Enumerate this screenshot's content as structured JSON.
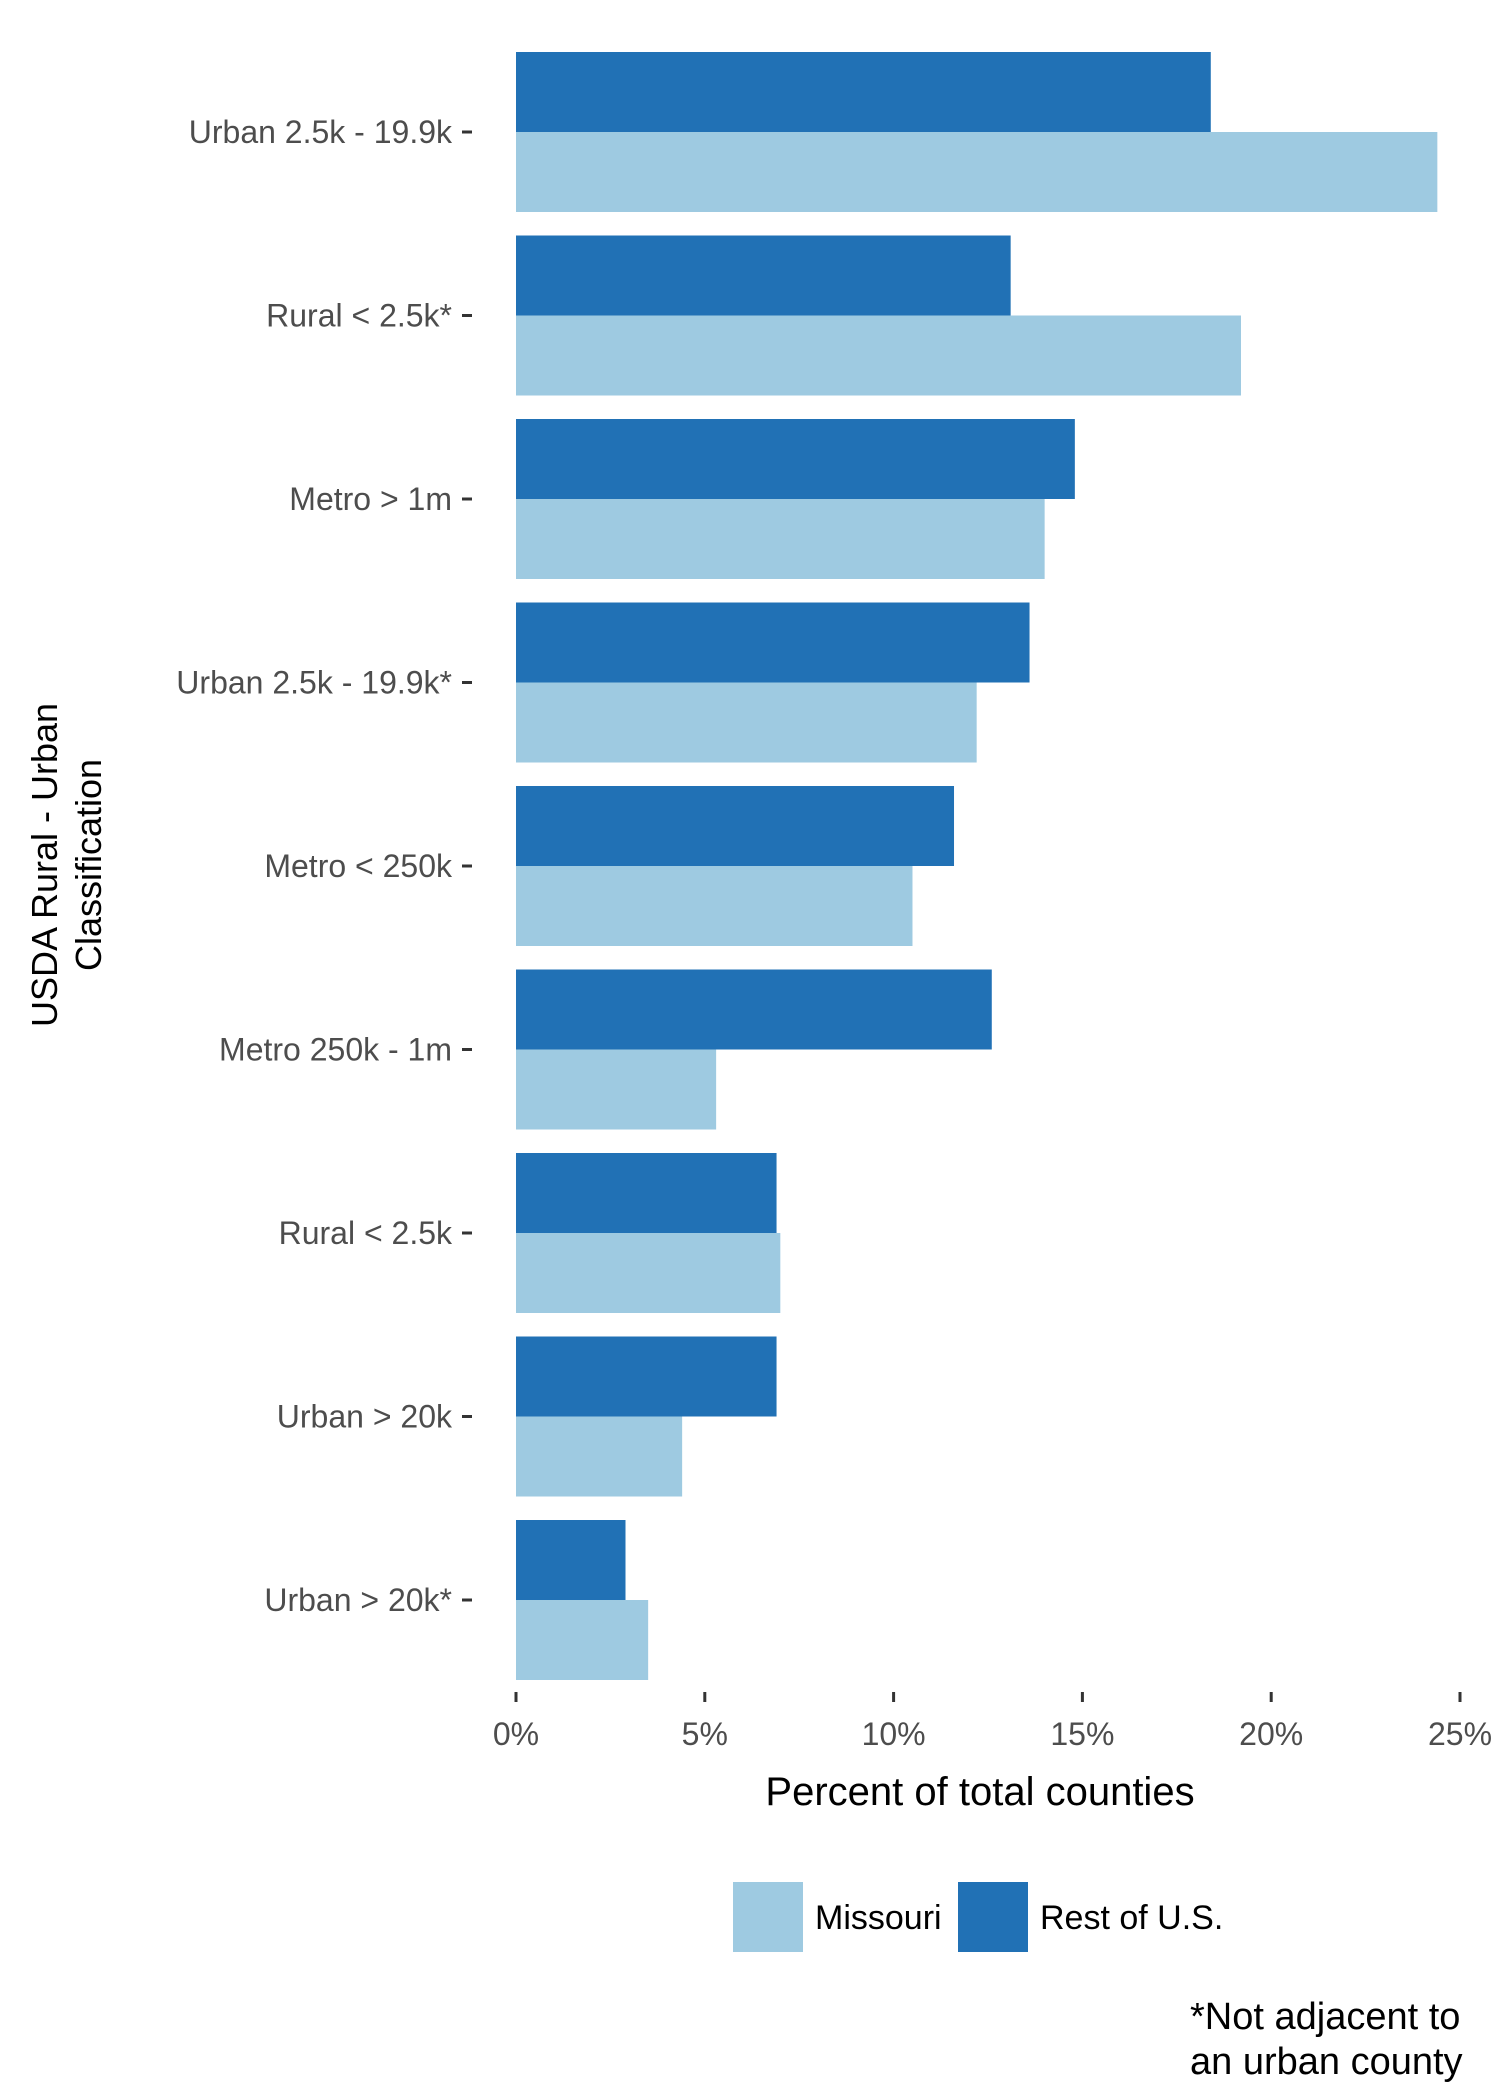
{
  "chart_data": {
    "type": "bar",
    "orientation": "horizontal",
    "ylabel": [
      "USDA Rural - Urban",
      "Classification"
    ],
    "xlabel": "Percent of total counties",
    "xlim": [
      0,
      25
    ],
    "xticks": [
      "0%",
      "5%",
      "10%",
      "15%",
      "20%",
      "25%"
    ],
    "categories": [
      "Urban 2.5k - 19.9k",
      "Rural < 2.5k*",
      "Metro > 1m",
      "Urban 2.5k - 19.9k*",
      "Metro < 250k",
      "Metro 250k - 1m",
      "Rural < 2.5k",
      "Urban > 20k",
      "Urban > 20k*"
    ],
    "series": [
      {
        "name": "Rest of U.S.",
        "color": "#2171b5",
        "values": [
          18.4,
          13.1,
          14.8,
          13.6,
          11.6,
          12.6,
          6.9,
          6.9,
          2.9
        ]
      },
      {
        "name": "Missouri",
        "color": "#9ecae1",
        "values": [
          24.4,
          19.2,
          14.0,
          12.2,
          10.5,
          5.3,
          7.0,
          4.4,
          3.5
        ]
      }
    ],
    "legend": {
      "position": "bottom",
      "order": [
        "Missouri",
        "Rest of U.S."
      ]
    },
    "grid": false,
    "footnote": [
      "*Not adjacent to",
      "an urban county"
    ]
  }
}
